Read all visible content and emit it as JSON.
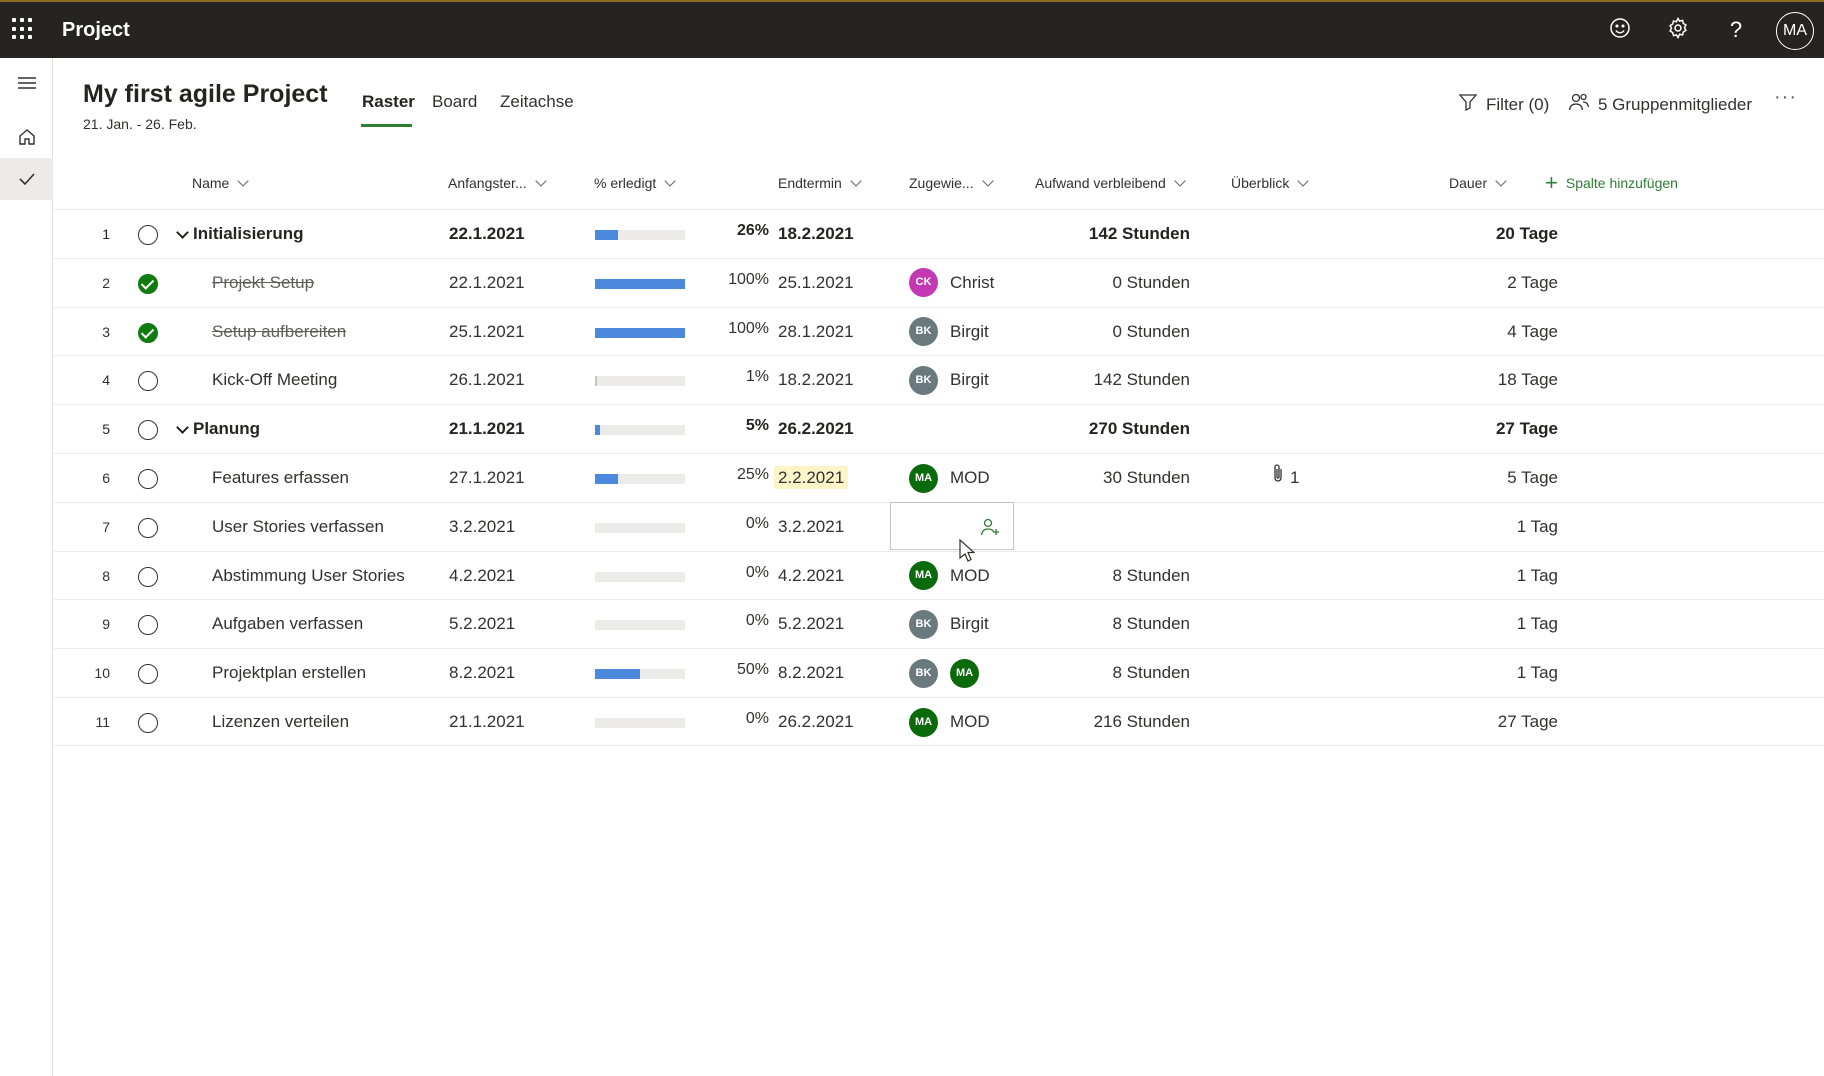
{
  "app": {
    "title": "Project",
    "user_initials": "MA"
  },
  "topbar_icons": [
    "smiley-icon",
    "gear-icon",
    "help-icon"
  ],
  "project": {
    "title": "My first agile Project",
    "dates": "21. Jan. - 26. Feb."
  },
  "tabs": [
    {
      "label": "Raster",
      "active": true
    },
    {
      "label": "Board",
      "active": false
    },
    {
      "label": "Zeitachse",
      "active": false
    }
  ],
  "toolbar": {
    "filter_label": "Filter (0)",
    "members_label": "5 Gruppenmitglieder",
    "more_label": "···"
  },
  "columns": {
    "name": "Name",
    "start": "Anfangster...",
    "percent": "% erledigt",
    "end": "Endtermin",
    "assigned": "Zugewie...",
    "effort": "Aufwand verbleibend",
    "overview": "Überblick",
    "duration": "Dauer",
    "add_column": "Spalte hinzufügen"
  },
  "colors": {
    "accent": "#2e7d32",
    "progress": "#4a89dc",
    "check_done": "#107c10",
    "avatar_ck": "#c239b3",
    "avatar_bk": "#69797e",
    "avatar_ma": "#0b6a0b"
  },
  "tasks": [
    {
      "num": "1",
      "name": "Initialisierung",
      "summary": true,
      "done": false,
      "start": "22.1.2021",
      "progress": 0.26,
      "percent": "26%",
      "end": "18.2.2021",
      "assignees": [],
      "assignee_name": "",
      "effort": "142 Stunden",
      "overview": "",
      "duration": "20 Tage"
    },
    {
      "num": "2",
      "name": "Projekt Setup",
      "summary": false,
      "done": true,
      "start": "22.1.2021",
      "progress": 1.0,
      "percent": "100%",
      "end": "25.1.2021",
      "assignees": [
        "CK"
      ],
      "assignee_name": "Christ",
      "effort": "0 Stunden",
      "overview": "",
      "duration": "2 Tage"
    },
    {
      "num": "3",
      "name": "Setup aufbereiten",
      "summary": false,
      "done": true,
      "start": "25.1.2021",
      "progress": 1.0,
      "percent": "100%",
      "end": "28.1.2021",
      "assignees": [
        "BK"
      ],
      "assignee_name": "Birgit",
      "effort": "0 Stunden",
      "overview": "",
      "duration": "4 Tage"
    },
    {
      "num": "4",
      "name": "Kick-Off Meeting",
      "summary": false,
      "done": false,
      "start": "26.1.2021",
      "progress": 0.01,
      "percent": "1%",
      "end": "18.2.2021",
      "assignees": [
        "BK"
      ],
      "assignee_name": "Birgit",
      "effort": "142 Stunden",
      "overview": "",
      "duration": "18 Tage"
    },
    {
      "num": "5",
      "name": "Planung",
      "summary": true,
      "done": false,
      "start": "21.1.2021",
      "progress": 0.05,
      "percent": "5%",
      "end": "26.2.2021",
      "assignees": [],
      "assignee_name": "",
      "effort": "270 Stunden",
      "overview": "",
      "duration": "27 Tage"
    },
    {
      "num": "6",
      "name": "Features erfassen",
      "summary": false,
      "done": false,
      "start": "27.1.2021",
      "progress": 0.25,
      "percent": "25%",
      "end": "2.2.2021",
      "end_highlight": true,
      "assignees": [
        "MA"
      ],
      "assignee_name": "MOD",
      "effort": "30 Stunden",
      "overview": "1",
      "duration": "5 Tage"
    },
    {
      "num": "7",
      "name": "User Stories verfassen",
      "summary": false,
      "done": false,
      "start": "3.2.2021",
      "progress": 0.0,
      "percent": "0%",
      "end": "3.2.2021",
      "assignees": [],
      "assignee_name": "",
      "effort": "",
      "overview": "",
      "duration": "1 Tag"
    },
    {
      "num": "8",
      "name": "Abstimmung User Stories",
      "summary": false,
      "done": false,
      "start": "4.2.2021",
      "progress": 0.0,
      "percent": "0%",
      "end": "4.2.2021",
      "assignees": [
        "MA"
      ],
      "assignee_name": "MOD",
      "effort": "8 Stunden",
      "overview": "",
      "duration": "1 Tag"
    },
    {
      "num": "9",
      "name": "Aufgaben verfassen",
      "summary": false,
      "done": false,
      "start": "5.2.2021",
      "progress": 0.0,
      "percent": "0%",
      "end": "5.2.2021",
      "assignees": [
        "BK"
      ],
      "assignee_name": "Birgit",
      "effort": "8 Stunden",
      "overview": "",
      "duration": "1 Tag"
    },
    {
      "num": "10",
      "name": "Projektplan erstellen",
      "summary": false,
      "done": false,
      "start": "8.2.2021",
      "progress": 0.5,
      "percent": "50%",
      "end": "8.2.2021",
      "assignees": [
        "BK",
        "MA"
      ],
      "assignee_name": "",
      "effort": "8 Stunden",
      "overview": "",
      "duration": "1 Tag"
    },
    {
      "num": "11",
      "name": "Lizenzen verteilen",
      "summary": false,
      "done": false,
      "start": "21.1.2021",
      "progress": 0.0,
      "percent": "0%",
      "end": "26.2.2021",
      "assignees": [
        "MA"
      ],
      "assignee_name": "MOD",
      "effort": "216 Stunden",
      "overview": "",
      "duration": "27 Tage"
    }
  ]
}
